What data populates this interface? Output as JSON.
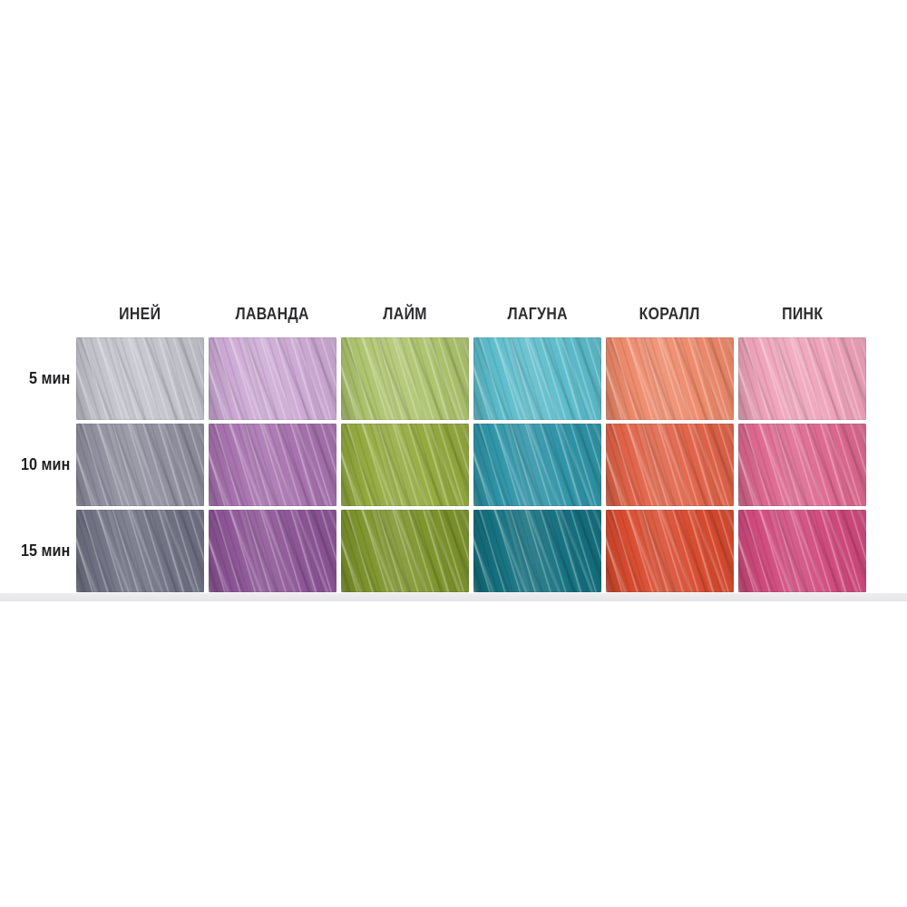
{
  "chart_data": {
    "type": "table",
    "title": "",
    "columns": [
      "ИНЕЙ",
      "ЛАВАНДА",
      "ЛАЙМ",
      "ЛАГУНА",
      "КОРАЛЛ",
      "ПИНК"
    ],
    "rows": [
      "5 мин",
      "10 мин",
      "15 мин"
    ],
    "swatch_colors": [
      [
        "#c3c3cc",
        "#cdaad5",
        "#aec46e",
        "#5cbccb",
        "#ee8a6b",
        "#efa3bb"
      ],
      [
        "#8f8f9f",
        "#a772ae",
        "#93aa3e",
        "#2e94a7",
        "#e06348",
        "#dd688f"
      ],
      [
        "#707284",
        "#8c5596",
        "#7d942c",
        "#14707f",
        "#d84b2f",
        "#d04a7d"
      ]
    ],
    "legend_position": "none",
    "layout": "6 columns of shade names across the top, 3 rows of development times down the left, colored hair-swatch cell at each intersection"
  },
  "colors": {
    "background": "#ffffff",
    "panel_edge": "#e9e9eb",
    "header_text": "#2c2c2e",
    "row_label_text": "#1f1f21"
  }
}
